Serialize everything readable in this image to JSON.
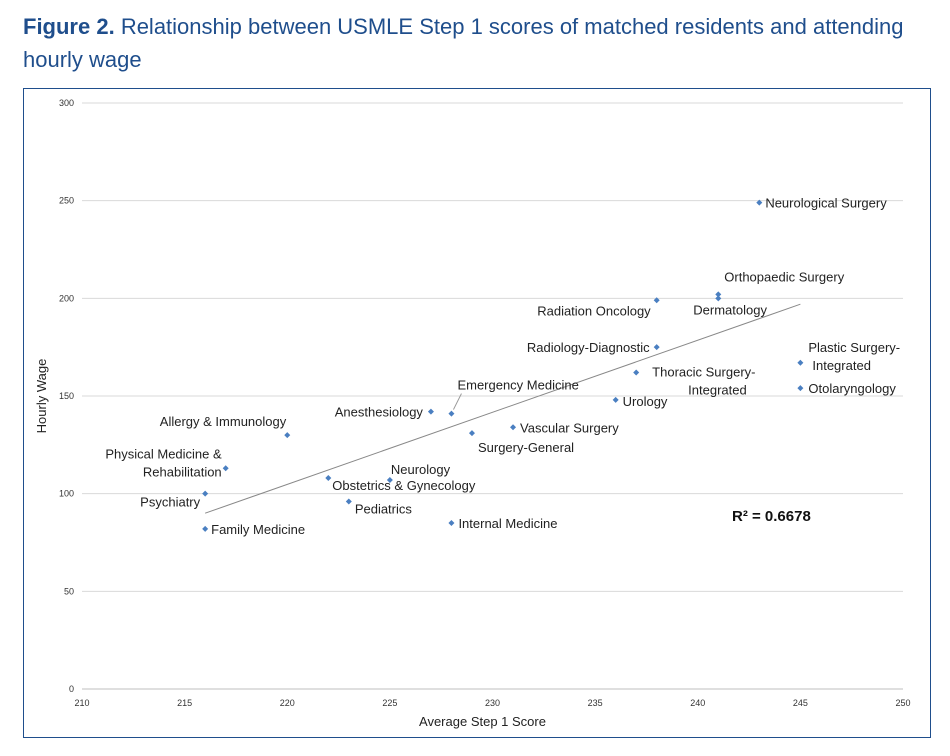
{
  "caption": {
    "figure_label": "Figure 2.",
    "text": "Relationship between USMLE Step 1 scores of matched residents and attending hourly wage"
  },
  "colors": {
    "caption": "#1f4e8c",
    "frame": "#1f4e8c",
    "point": "#4a7fc1",
    "trend": "#888888",
    "grid": "#d9d9d9"
  },
  "chart_data": {
    "type": "scatter",
    "title": "",
    "xlabel": "Average Step 1 Score",
    "ylabel": "Hourly Wage",
    "xlim": [
      210,
      250
    ],
    "ylim": [
      0,
      300
    ],
    "xticks": [
      210,
      215,
      220,
      225,
      230,
      235,
      240,
      245,
      250
    ],
    "yticks": [
      0,
      50,
      100,
      150,
      200,
      250,
      300
    ],
    "grid": "horizontal",
    "annotation": "R² = 0.6678",
    "trendline": {
      "x": [
        216,
        245
      ],
      "y": [
        90,
        197
      ]
    },
    "points": [
      {
        "label": "Neurological Surgery",
        "x": 243,
        "y": 249
      },
      {
        "label": "Orthopaedic Surgery",
        "x": 241,
        "y": 202
      },
      {
        "label": "Dermatology",
        "x": 241,
        "y": 200
      },
      {
        "label": "Radiation Oncology",
        "x": 238,
        "y": 199
      },
      {
        "label": "Radiology-Diagnostic",
        "x": 238,
        "y": 175
      },
      {
        "label": "Plastic Surgery-Integrated",
        "label_lines": [
          "Plastic Surgery-",
          "Integrated"
        ],
        "x": 245,
        "y": 167
      },
      {
        "label": "Thoracic Surgery-Integrated",
        "label_lines": [
          "Thoracic Surgery-",
          "Integrated"
        ],
        "x": 237,
        "y": 162
      },
      {
        "label": "Otolaryngology",
        "x": 245,
        "y": 154
      },
      {
        "label": "Urology",
        "x": 236,
        "y": 148
      },
      {
        "label": "Emergency Medicine",
        "x": 228,
        "y": 141
      },
      {
        "label": "Anesthesiology",
        "x": 227,
        "y": 142
      },
      {
        "label": "Vascular Surgery",
        "x": 231,
        "y": 134
      },
      {
        "label": "Surgery-General",
        "x": 229,
        "y": 131
      },
      {
        "label": "Allergy & Immunology",
        "x": 220,
        "y": 130
      },
      {
        "label": "Physical Medicine & Rehabilitation",
        "label_lines": [
          "Physical Medicine &",
          "Rehabilitation"
        ],
        "x": 217,
        "y": 113
      },
      {
        "label": "Obstetrics & Gynecology",
        "x": 222,
        "y": 108
      },
      {
        "label": "Neurology",
        "x": 225,
        "y": 107
      },
      {
        "label": "Psychiatry",
        "x": 216,
        "y": 100
      },
      {
        "label": "Pediatrics",
        "x": 223,
        "y": 96
      },
      {
        "label": "Internal Medicine",
        "x": 228,
        "y": 85
      },
      {
        "label": "Family Medicine",
        "x": 216,
        "y": 82
      }
    ]
  }
}
